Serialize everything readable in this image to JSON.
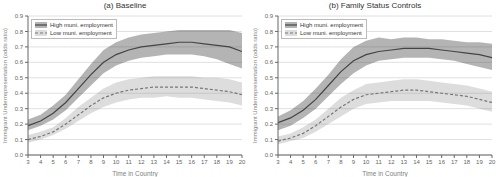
{
  "chart_data": [
    {
      "type": "line",
      "title": "(a) Baseline",
      "xlabel": "Time in Country",
      "ylabel": "Immigrant Underrepresentation (odds ratio)",
      "x": [
        3,
        4,
        5,
        6,
        7,
        8,
        9,
        10,
        11,
        12,
        13,
        14,
        15,
        16,
        17,
        18,
        19,
        20
      ],
      "xlim": [
        3,
        20
      ],
      "xticks": [
        3,
        4,
        5,
        6,
        7,
        8,
        9,
        10,
        11,
        12,
        13,
        14,
        15,
        16,
        17,
        18,
        19,
        20
      ],
      "ylim": [
        0.0,
        0.9
      ],
      "yticks": [
        {
          "value": 0.0,
          "label": "0.0"
        },
        0.1,
        0.2,
        0.3,
        0.4,
        0.5,
        0.6,
        0.7,
        0.8,
        0.9
      ],
      "grid": "y",
      "legend": "upper left",
      "series": [
        {
          "name": "High muni. employment",
          "color": "#444444",
          "line_style": "solid",
          "values": [
            0.19,
            0.22,
            0.27,
            0.34,
            0.43,
            0.52,
            0.6,
            0.65,
            0.68,
            0.7,
            0.71,
            0.72,
            0.73,
            0.73,
            0.72,
            0.71,
            0.7,
            0.67
          ],
          "lower": [
            0.16,
            0.19,
            0.23,
            0.29,
            0.37,
            0.45,
            0.53,
            0.58,
            0.61,
            0.63,
            0.64,
            0.65,
            0.65,
            0.65,
            0.64,
            0.62,
            0.59,
            0.56
          ],
          "upper": [
            0.23,
            0.26,
            0.32,
            0.39,
            0.49,
            0.59,
            0.68,
            0.73,
            0.76,
            0.78,
            0.79,
            0.8,
            0.81,
            0.81,
            0.81,
            0.81,
            0.81,
            0.79
          ]
        },
        {
          "name": "Low muni. employment",
          "color": "#777777",
          "line_style": "dashed",
          "values": [
            0.1,
            0.12,
            0.15,
            0.2,
            0.26,
            0.32,
            0.37,
            0.4,
            0.42,
            0.43,
            0.44,
            0.44,
            0.44,
            0.44,
            0.43,
            0.42,
            0.41,
            0.39
          ],
          "lower": [
            0.08,
            0.1,
            0.13,
            0.17,
            0.22,
            0.27,
            0.31,
            0.34,
            0.36,
            0.37,
            0.37,
            0.38,
            0.37,
            0.37,
            0.36,
            0.35,
            0.34,
            0.32
          ],
          "upper": [
            0.13,
            0.15,
            0.18,
            0.24,
            0.31,
            0.37,
            0.43,
            0.47,
            0.49,
            0.5,
            0.51,
            0.51,
            0.51,
            0.51,
            0.5,
            0.5,
            0.49,
            0.47
          ]
        }
      ]
    },
    {
      "type": "line",
      "title": "(b) Family Status Controls",
      "xlabel": "Time in Country",
      "ylabel": "Immigrant Underrepresentation (odds ratio)",
      "x": [
        3,
        4,
        5,
        6,
        7,
        8,
        9,
        10,
        11,
        12,
        13,
        14,
        15,
        16,
        17,
        18,
        19,
        20
      ],
      "xlim": [
        3,
        20
      ],
      "xticks": [
        3,
        4,
        5,
        6,
        7,
        8,
        9,
        10,
        11,
        12,
        13,
        14,
        15,
        16,
        17,
        18,
        19,
        20
      ],
      "ylim": [
        0.0,
        0.9
      ],
      "yticks": [
        {
          "value": 0.0,
          "label": "0.0"
        },
        0.1,
        0.2,
        0.3,
        0.4,
        0.5,
        0.6,
        0.7,
        0.8,
        0.9
      ],
      "grid": "y",
      "legend": "upper left",
      "series": [
        {
          "name": "High muni. employment",
          "color": "#444444",
          "line_style": "solid",
          "values": [
            0.21,
            0.24,
            0.29,
            0.36,
            0.45,
            0.54,
            0.61,
            0.65,
            0.67,
            0.68,
            0.69,
            0.69,
            0.69,
            0.68,
            0.67,
            0.66,
            0.65,
            0.63
          ],
          "lower": [
            0.16,
            0.19,
            0.24,
            0.3,
            0.38,
            0.46,
            0.53,
            0.58,
            0.61,
            0.62,
            0.63,
            0.63,
            0.63,
            0.62,
            0.61,
            0.59,
            0.57,
            0.55
          ],
          "upper": [
            0.25,
            0.29,
            0.35,
            0.43,
            0.52,
            0.62,
            0.7,
            0.74,
            0.76,
            0.75,
            0.76,
            0.76,
            0.75,
            0.75,
            0.74,
            0.73,
            0.73,
            0.72
          ]
        },
        {
          "name": "Low muni. employment",
          "color": "#777777",
          "line_style": "dashed",
          "values": [
            0.09,
            0.11,
            0.14,
            0.19,
            0.25,
            0.31,
            0.36,
            0.39,
            0.4,
            0.41,
            0.42,
            0.42,
            0.41,
            0.4,
            0.39,
            0.38,
            0.36,
            0.34
          ],
          "lower": [
            0.07,
            0.09,
            0.11,
            0.15,
            0.2,
            0.25,
            0.3,
            0.33,
            0.34,
            0.35,
            0.35,
            0.35,
            0.35,
            0.34,
            0.33,
            0.32,
            0.3,
            0.28
          ],
          "upper": [
            0.12,
            0.14,
            0.18,
            0.23,
            0.3,
            0.37,
            0.42,
            0.46,
            0.47,
            0.48,
            0.49,
            0.49,
            0.48,
            0.47,
            0.46,
            0.45,
            0.43,
            0.41
          ]
        }
      ]
    }
  ]
}
